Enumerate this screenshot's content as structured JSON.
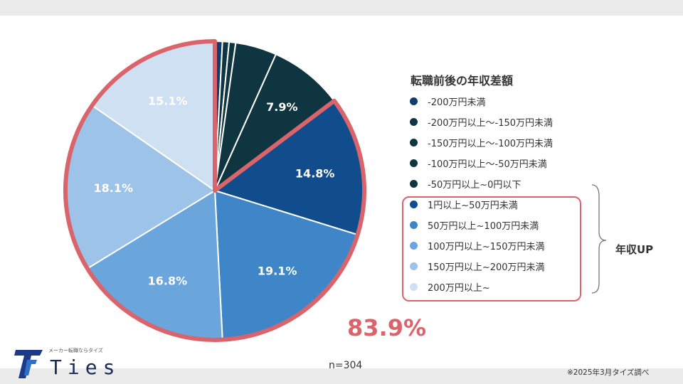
{
  "chart_data": {
    "type": "pie",
    "title": "転職前後の年収差額",
    "slices": [
      {
        "label": "-200万円未満",
        "value": 0.8,
        "color": "#0f3d6e",
        "display": ""
      },
      {
        "label": "-200万円以上〜-150万円未満",
        "value": 0.7,
        "color": "#0f3540",
        "display": ""
      },
      {
        "label": "-150万円以上〜-100万円未満",
        "value": 0.7,
        "color": "#0f3540",
        "display": ""
      },
      {
        "label": "-100万円以上〜-50万円未満",
        "value": 4.4,
        "color": "#0f3540",
        "display": ""
      },
      {
        "label": "-50万円以上~0円以下",
        "value": 7.9,
        "color": "#0f3540",
        "display": "7.9%"
      },
      {
        "label": "1円以上~50万円未満",
        "value": 14.8,
        "color": "#114d8c",
        "display": "14.8%"
      },
      {
        "label": "50万円以上~100万円未満",
        "value": 19.1,
        "color": "#3f86c8",
        "display": "19.1%"
      },
      {
        "label": "100万円以上~150万円未満",
        "value": 16.8,
        "color": "#6aa5dc",
        "display": "16.8%"
      },
      {
        "label": "150万円以上~200万円未満",
        "value": 18.1,
        "color": "#9dc3e8",
        "display": "18.1%"
      },
      {
        "label": "200万円以上~",
        "value": 15.1,
        "color": "#cfe0f3",
        "display": "15.1%"
      }
    ],
    "highlight_total": "83.9%",
    "group_label": "年収UP",
    "sample_size": "n=304"
  },
  "highlight_color": "#d9646b",
  "footnote": "※2025年3月タイズ調べ",
  "logo": {
    "tagline": "メーカー転職ならタイズ",
    "wordmark": "Ties"
  }
}
